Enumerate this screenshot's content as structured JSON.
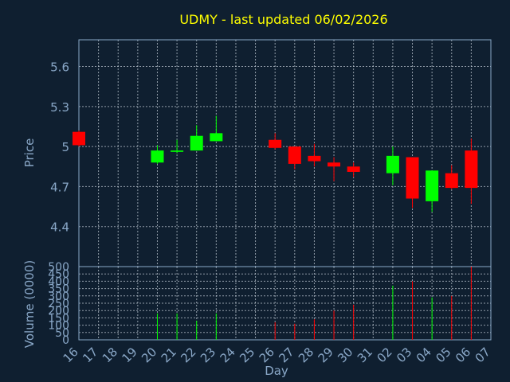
{
  "chart_data": {
    "type": "candlestick",
    "title": "UDMY - last updated 06/02/2026",
    "xlabel": "Day",
    "price_panel": {
      "ylabel": "Price",
      "ylim": [
        4.1,
        5.8
      ],
      "yticks": [
        "4.4",
        "4.7",
        "5",
        "5.3",
        "5.6"
      ]
    },
    "volume_panel": {
      "ylabel": "Volume (0000)",
      "ylim": [
        0,
        500
      ],
      "yticks": [
        "0",
        "50",
        "100",
        "150",
        "200",
        "250",
        "300",
        "350",
        "400",
        "450",
        "500"
      ]
    },
    "days": [
      "16",
      "17",
      "18",
      "19",
      "20",
      "21",
      "22",
      "23",
      "24",
      "25",
      "26",
      "27",
      "28",
      "29",
      "30",
      "31",
      "02",
      "03",
      "04",
      "05",
      "06",
      "07"
    ],
    "candles": [
      {
        "day": "16",
        "open": 5.11,
        "high": 5.12,
        "low": 5.0,
        "close": 5.01,
        "volume": 0
      },
      {
        "day": "20",
        "open": 4.88,
        "high": 5.01,
        "low": 4.87,
        "close": 4.97,
        "volume": 180
      },
      {
        "day": "21",
        "open": 4.96,
        "high": 5.05,
        "low": 4.95,
        "close": 4.97,
        "volume": 180
      },
      {
        "day": "22",
        "open": 4.97,
        "high": 5.16,
        "low": 4.97,
        "close": 5.08,
        "volume": 130
      },
      {
        "day": "23",
        "open": 5.04,
        "high": 5.23,
        "low": 5.04,
        "close": 5.1,
        "volume": 180
      },
      {
        "day": "26",
        "open": 5.05,
        "high": 5.1,
        "low": 4.98,
        "close": 4.99,
        "volume": 120
      },
      {
        "day": "27",
        "open": 5.0,
        "high": 5.0,
        "low": 4.83,
        "close": 4.87,
        "volume": 110
      },
      {
        "day": "28",
        "open": 4.93,
        "high": 5.02,
        "low": 4.85,
        "close": 4.89,
        "volume": 140
      },
      {
        "day": "29",
        "open": 4.88,
        "high": 4.92,
        "low": 4.74,
        "close": 4.85,
        "volume": 200
      },
      {
        "day": "30",
        "open": 4.85,
        "high": 4.88,
        "low": 4.77,
        "close": 4.81,
        "volume": 240
      },
      {
        "day": "02",
        "open": 4.8,
        "high": 5.0,
        "low": 4.71,
        "close": 4.93,
        "volume": 370
      },
      {
        "day": "03",
        "open": 4.92,
        "high": 4.92,
        "low": 4.54,
        "close": 4.61,
        "volume": 400
      },
      {
        "day": "04",
        "open": 4.59,
        "high": 4.82,
        "low": 4.51,
        "close": 4.82,
        "volume": 290
      },
      {
        "day": "05",
        "open": 4.8,
        "high": 4.86,
        "low": 4.68,
        "close": 4.69,
        "volume": 300
      },
      {
        "day": "06",
        "open": 4.97,
        "high": 5.06,
        "low": 4.57,
        "close": 4.69,
        "volume": 500
      }
    ],
    "grid": true
  },
  "colors": {
    "background": "#0f1f30",
    "title": "#ffff00",
    "axis_text": "#8aa8c8",
    "frame": "#8aa8c8",
    "grid": "#c8d2dc",
    "up": "#00ff00",
    "down": "#ff0000"
  }
}
